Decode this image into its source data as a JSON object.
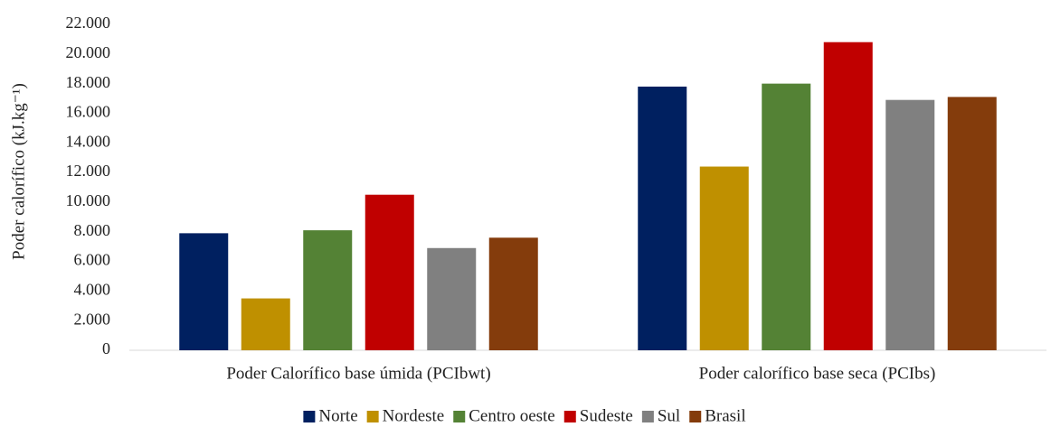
{
  "chart_data": {
    "type": "bar",
    "y_label": "Poder calorífico (kJ.kg⁻¹)",
    "categories": [
      "Poder Calorífico base úmida (PCIbwt)",
      "Poder calorífico base seca (PCIbs)"
    ],
    "series": [
      {
        "name": "Norte",
        "color": "#002060",
        "values": [
          7900,
          17800
        ]
      },
      {
        "name": "Nordeste",
        "color": "#bf9000",
        "values": [
          3500,
          12400
        ]
      },
      {
        "name": "Centro oeste",
        "color": "#548235",
        "values": [
          8100,
          18000
        ]
      },
      {
        "name": "Sudeste",
        "color": "#c00000",
        "values": [
          10500,
          20800
        ]
      },
      {
        "name": "Sul",
        "color": "#808080",
        "values": [
          6900,
          16900
        ]
      },
      {
        "name": "Brasil",
        "color": "#843c0c",
        "values": [
          7600,
          17100
        ]
      }
    ],
    "ylim": [
      0,
      22000
    ],
    "yticks": [
      0,
      {
        "value": 2000,
        "label": "2.000"
      },
      {
        "value": 4000,
        "label": "4.000"
      },
      {
        "value": 6000,
        "label": "6.000"
      },
      {
        "value": 8000,
        "label": "8.000"
      },
      {
        "value": 10000,
        "label": "10.000"
      },
      {
        "value": 12000,
        "label": "12.000"
      },
      {
        "value": 14000,
        "label": "14.000"
      },
      {
        "value": 16000,
        "label": "16.000"
      },
      {
        "value": 18000,
        "label": "18.000"
      },
      {
        "value": 20000,
        "label": "20.000"
      },
      {
        "value": 22000,
        "label": "22.000"
      }
    ],
    "legend": "bottom"
  }
}
